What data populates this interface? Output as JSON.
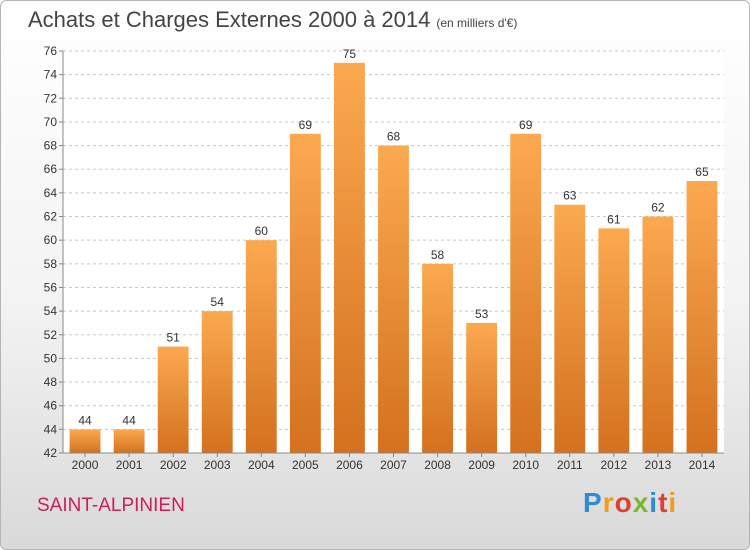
{
  "header": {
    "title": "Achats et Charges Externes 2000 à 2014",
    "subtitle": "(en milliers d'€)"
  },
  "footer": {
    "commune": "SAINT-ALPINIEN",
    "logo": "Proxiti"
  },
  "chart_data": {
    "type": "bar",
    "categories": [
      "2000",
      "2001",
      "2002",
      "2003",
      "2004",
      "2005",
      "2006",
      "2007",
      "2008",
      "2009",
      "2010",
      "2011",
      "2012",
      "2013",
      "2014"
    ],
    "values": [
      44,
      44,
      51,
      54,
      60,
      69,
      75,
      68,
      58,
      53,
      69,
      63,
      61,
      62,
      65
    ],
    "data_labels": [
      "44",
      "44",
      "51",
      "54",
      "60",
      "69",
      "75",
      "68",
      "58",
      "53",
      "69",
      "63",
      "61",
      "62",
      "65"
    ],
    "title": "Achats et Charges Externes 2000 à 2014",
    "unit": "(en milliers d'€)",
    "xlabel": "",
    "ylabel": "",
    "ylim": [
      42,
      76
    ],
    "yticks": [
      42,
      44,
      46,
      48,
      50,
      52,
      54,
      56,
      58,
      60,
      62,
      64,
      66,
      68,
      70,
      72,
      74,
      76
    ],
    "grid": "horizontal dashed",
    "colors": {
      "bar_top": "#fba94f",
      "bar_bottom": "#d4711e",
      "grid": "#c8c8c8",
      "axis_text": "#333333"
    }
  }
}
